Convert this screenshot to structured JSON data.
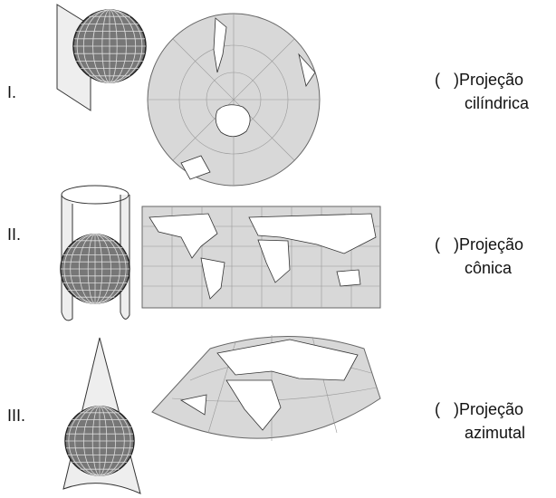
{
  "items": [
    {
      "numeral": "I.",
      "option": [
        "(   )Projeção",
        "cilíndrica"
      ]
    },
    {
      "numeral": "II.",
      "option": [
        "(   )Projeção",
        "cônica"
      ]
    },
    {
      "numeral": "III.",
      "option": [
        "(   )Projeção",
        "azimutal"
      ]
    }
  ]
}
